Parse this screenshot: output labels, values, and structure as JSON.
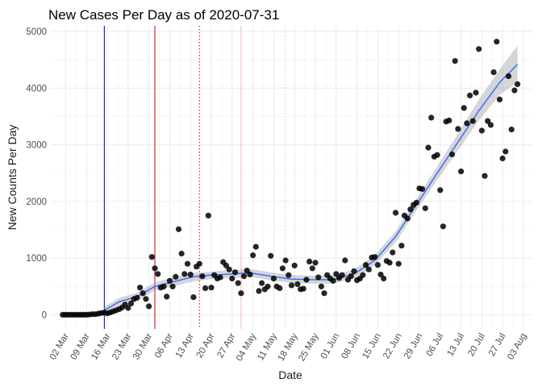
{
  "chart_data": {
    "type": "scatter",
    "title": "New Cases Per Day as of 2020-07-31",
    "xlabel": "Date",
    "ylabel": "New Counts Per Day",
    "x_tick_labels": [
      "02 Mar",
      "09 Mar",
      "16 Mar",
      "23 Mar",
      "30 Mar",
      "06 Apr",
      "13 Apr",
      "20 Apr",
      "27 Apr",
      "04 May",
      "11 May",
      "18 May",
      "25 May",
      "01 Jun",
      "08 Jun",
      "15 Jun",
      "22 Jun",
      "29 Jun",
      "06 Jul",
      "13 Jul",
      "20 Jul",
      "27 Jul",
      "03 Aug"
    ],
    "x_ticks": [
      "2020-03-02",
      "2020-03-09",
      "2020-03-16",
      "2020-03-23",
      "2020-03-30",
      "2020-04-06",
      "2020-04-13",
      "2020-04-20",
      "2020-04-27",
      "2020-05-04",
      "2020-05-11",
      "2020-05-18",
      "2020-05-25",
      "2020-06-01",
      "2020-06-08",
      "2020-06-15",
      "2020-06-22",
      "2020-06-29",
      "2020-07-06",
      "2020-07-13",
      "2020-07-20",
      "2020-07-27",
      "2020-08-03"
    ],
    "xlim": [
      "2020-02-26",
      "2020-08-06"
    ],
    "y_ticks": [
      0,
      1000,
      2000,
      3000,
      4000,
      5000
    ],
    "ylim": [
      -250,
      5100
    ],
    "grid": true,
    "legend": "none",
    "colors": {
      "points": "#000000",
      "smooth": "#3366ff",
      "ribbon": "#999999"
    },
    "vertical_lines": [
      {
        "x": "2020-03-15",
        "color": "#00008b",
        "style": "solid"
      },
      {
        "x": "2020-04-01",
        "color": "#cc0000",
        "style": "solid"
      },
      {
        "x": "2020-04-16",
        "color": "#cc0000",
        "style": "dotted"
      },
      {
        "x": "2020-04-30",
        "color": "#ffb6c1",
        "style": "solid"
      },
      {
        "x": "2020-05-15",
        "color": "#d3d3d3",
        "style": "dotted"
      }
    ],
    "series": [
      {
        "values": [
          [
            "2020-03-01",
            0
          ],
          [
            "2020-03-02",
            0
          ],
          [
            "2020-03-03",
            0
          ],
          [
            "2020-03-04",
            0
          ],
          [
            "2020-03-05",
            0
          ],
          [
            "2020-03-06",
            0
          ],
          [
            "2020-03-07",
            0
          ],
          [
            "2020-03-08",
            0
          ],
          [
            "2020-03-09",
            0
          ],
          [
            "2020-03-10",
            5
          ],
          [
            "2020-03-11",
            10
          ],
          [
            "2020-03-12",
            10
          ],
          [
            "2020-03-13",
            20
          ],
          [
            "2020-03-14",
            30
          ],
          [
            "2020-03-15",
            40
          ],
          [
            "2020-03-16",
            25
          ],
          [
            "2020-03-17",
            40
          ],
          [
            "2020-03-18",
            60
          ],
          [
            "2020-03-19",
            80
          ],
          [
            "2020-03-20",
            100
          ],
          [
            "2020-03-21",
            130
          ],
          [
            "2020-03-22",
            180
          ],
          [
            "2020-03-23",
            120
          ],
          [
            "2020-03-24",
            200
          ],
          [
            "2020-03-25",
            280
          ],
          [
            "2020-03-26",
            300
          ],
          [
            "2020-03-27",
            480
          ],
          [
            "2020-03-28",
            380
          ],
          [
            "2020-03-29",
            280
          ],
          [
            "2020-03-30",
            150
          ],
          [
            "2020-03-31",
            1020
          ],
          [
            "2020-04-01",
            820
          ],
          [
            "2020-04-02",
            720
          ],
          [
            "2020-04-03",
            480
          ],
          [
            "2020-04-04",
            500
          ],
          [
            "2020-04-05",
            320
          ],
          [
            "2020-04-06",
            600
          ],
          [
            "2020-04-07",
            500
          ],
          [
            "2020-04-08",
            670
          ],
          [
            "2020-04-09",
            1510
          ],
          [
            "2020-04-10",
            1080
          ],
          [
            "2020-04-11",
            720
          ],
          [
            "2020-04-12",
            900
          ],
          [
            "2020-04-13",
            710
          ],
          [
            "2020-04-14",
            310
          ],
          [
            "2020-04-15",
            850
          ],
          [
            "2020-04-16",
            900
          ],
          [
            "2020-04-17",
            680
          ],
          [
            "2020-04-18",
            470
          ],
          [
            "2020-04-19",
            1750
          ],
          [
            "2020-04-20",
            480
          ],
          [
            "2020-04-21",
            700
          ],
          [
            "2020-04-22",
            640
          ],
          [
            "2020-04-23",
            660
          ],
          [
            "2020-04-24",
            930
          ],
          [
            "2020-04-25",
            870
          ],
          [
            "2020-04-26",
            800
          ],
          [
            "2020-04-27",
            640
          ],
          [
            "2020-04-28",
            750
          ],
          [
            "2020-04-29",
            560
          ],
          [
            "2020-04-30",
            380
          ],
          [
            "2020-05-01",
            680
          ],
          [
            "2020-05-02",
            780
          ],
          [
            "2020-05-03",
            710
          ],
          [
            "2020-05-04",
            1050
          ],
          [
            "2020-05-05",
            1200
          ],
          [
            "2020-05-06",
            420
          ],
          [
            "2020-05-07",
            560
          ],
          [
            "2020-05-08",
            450
          ],
          [
            "2020-05-09",
            500
          ],
          [
            "2020-05-10",
            1040
          ],
          [
            "2020-05-11",
            640
          ],
          [
            "2020-05-12",
            500
          ],
          [
            "2020-05-13",
            470
          ],
          [
            "2020-05-14",
            820
          ],
          [
            "2020-05-15",
            960
          ],
          [
            "2020-05-16",
            700
          ],
          [
            "2020-05-17",
            520
          ],
          [
            "2020-05-18",
            870
          ],
          [
            "2020-05-19",
            540
          ],
          [
            "2020-05-20",
            450
          ],
          [
            "2020-05-21",
            460
          ],
          [
            "2020-05-22",
            620
          ],
          [
            "2020-05-23",
            940
          ],
          [
            "2020-05-24",
            820
          ],
          [
            "2020-05-25",
            920
          ],
          [
            "2020-05-26",
            660
          ],
          [
            "2020-05-27",
            500
          ],
          [
            "2020-05-28",
            380
          ],
          [
            "2020-05-29",
            700
          ],
          [
            "2020-05-30",
            640
          ],
          [
            "2020-05-31",
            600
          ],
          [
            "2020-06-01",
            720
          ],
          [
            "2020-06-02",
            650
          ],
          [
            "2020-06-03",
            700
          ],
          [
            "2020-06-04",
            960
          ],
          [
            "2020-06-05",
            620
          ],
          [
            "2020-06-06",
            680
          ],
          [
            "2020-06-07",
            770
          ],
          [
            "2020-06-08",
            610
          ],
          [
            "2020-06-09",
            640
          ],
          [
            "2020-06-10",
            700
          ],
          [
            "2020-06-11",
            880
          ],
          [
            "2020-06-12",
            800
          ],
          [
            "2020-06-13",
            1010
          ],
          [
            "2020-06-14",
            1020
          ],
          [
            "2020-06-15",
            880
          ],
          [
            "2020-06-16",
            710
          ],
          [
            "2020-06-17",
            640
          ],
          [
            "2020-06-18",
            950
          ],
          [
            "2020-06-19",
            920
          ],
          [
            "2020-06-20",
            1100
          ],
          [
            "2020-06-21",
            1800
          ],
          [
            "2020-06-22",
            900
          ],
          [
            "2020-06-23",
            1220
          ],
          [
            "2020-06-24",
            1750
          ],
          [
            "2020-06-25",
            1700
          ],
          [
            "2020-06-26",
            1860
          ],
          [
            "2020-06-27",
            1940
          ],
          [
            "2020-06-28",
            1980
          ],
          [
            "2020-06-29",
            2230
          ],
          [
            "2020-06-30",
            2220
          ],
          [
            "2020-07-01",
            1880
          ],
          [
            "2020-07-02",
            2950
          ],
          [
            "2020-07-03",
            3480
          ],
          [
            "2020-07-04",
            2790
          ],
          [
            "2020-07-05",
            2820
          ],
          [
            "2020-07-06",
            2200
          ],
          [
            "2020-07-07",
            1560
          ],
          [
            "2020-07-08",
            3410
          ],
          [
            "2020-07-09",
            3430
          ],
          [
            "2020-07-10",
            2830
          ],
          [
            "2020-07-11",
            4480
          ],
          [
            "2020-07-12",
            3280
          ],
          [
            "2020-07-13",
            2530
          ],
          [
            "2020-07-14",
            3650
          ],
          [
            "2020-07-15",
            3380
          ],
          [
            "2020-07-16",
            3870
          ],
          [
            "2020-07-17",
            3420
          ],
          [
            "2020-07-18",
            3920
          ],
          [
            "2020-07-19",
            4690
          ],
          [
            "2020-07-20",
            3250
          ],
          [
            "2020-07-21",
            2450
          ],
          [
            "2020-07-22",
            3420
          ],
          [
            "2020-07-23",
            3350
          ],
          [
            "2020-07-24",
            4280
          ],
          [
            "2020-07-25",
            4820
          ],
          [
            "2020-07-26",
            3800
          ],
          [
            "2020-07-27",
            2760
          ],
          [
            "2020-07-28",
            2880
          ],
          [
            "2020-07-29",
            4210
          ],
          [
            "2020-07-30",
            3270
          ],
          [
            "2020-07-31",
            3960
          ],
          [
            "2020-08-01",
            4070
          ]
        ]
      }
    ],
    "smooth": [
      [
        "2020-03-15",
        80,
        20,
        140
      ],
      [
        "2020-03-20",
        230,
        170,
        300
      ],
      [
        "2020-03-26",
        320,
        250,
        390
      ],
      [
        "2020-04-01",
        500,
        430,
        570
      ],
      [
        "2020-04-07",
        580,
        500,
        660
      ],
      [
        "2020-04-14",
        670,
        590,
        740
      ],
      [
        "2020-04-20",
        700,
        630,
        760
      ],
      [
        "2020-04-27",
        720,
        650,
        790
      ],
      [
        "2020-05-03",
        740,
        670,
        810
      ],
      [
        "2020-05-10",
        680,
        610,
        750
      ],
      [
        "2020-05-17",
        630,
        560,
        700
      ],
      [
        "2020-05-24",
        620,
        550,
        690
      ],
      [
        "2020-05-31",
        620,
        550,
        700
      ],
      [
        "2020-06-07",
        720,
        640,
        800
      ],
      [
        "2020-06-14",
        960,
        880,
        1050
      ],
      [
        "2020-06-21",
        1380,
        1280,
        1470
      ],
      [
        "2020-06-28",
        1940,
        1840,
        2040
      ],
      [
        "2020-07-05",
        2500,
        2380,
        2620
      ],
      [
        "2020-07-12",
        3050,
        2900,
        3200
      ],
      [
        "2020-07-19",
        3600,
        3430,
        3800
      ],
      [
        "2020-07-26",
        4100,
        3880,
        4330
      ],
      [
        "2020-08-01",
        4420,
        4100,
        4750
      ]
    ]
  }
}
